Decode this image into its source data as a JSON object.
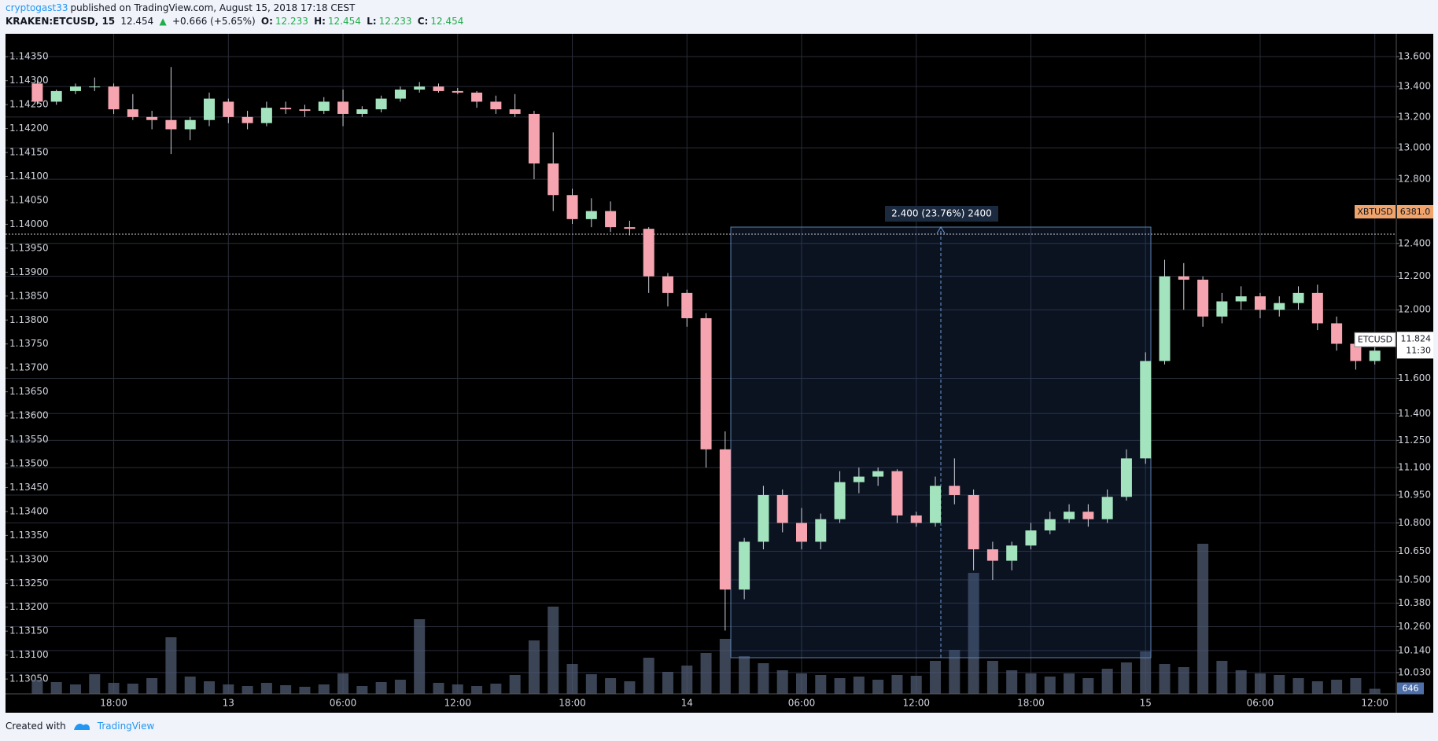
{
  "header": {
    "author": "cryptogast33",
    "published": "published on TradingView.com, August 15, 2018 17:18 CEST",
    "symbol": "KRAKEN:ETCUSD, 15",
    "last": "12.454",
    "arrow": "▲",
    "change": "+0.666 (+5.65%)",
    "o_label": "O:",
    "open": "12.233",
    "h_label": "H:",
    "high": "12.454",
    "l_label": "L:",
    "low": "12.233",
    "c_label": "C:",
    "close": "12.454"
  },
  "footer": {
    "text": "Created with",
    "brand": "TradingView"
  },
  "chart_data": {
    "type": "candlestick",
    "log_y": true,
    "grid": true,
    "up_color": "#a3e4be",
    "down_color": "#f6a5b0",
    "volume_color": "#4f5b72",
    "categories": [
      null,
      null,
      null,
      null,
      "18:00",
      null,
      null,
      null,
      null,
      null,
      "13",
      null,
      null,
      null,
      null,
      null,
      "06:00",
      null,
      null,
      null,
      null,
      null,
      "12:00",
      null,
      null,
      null,
      null,
      null,
      "18:00",
      null,
      null,
      null,
      null,
      null,
      "14",
      null,
      null,
      null,
      null,
      null,
      "06:00",
      null,
      null,
      null,
      null,
      null,
      "12:00",
      null,
      null,
      null,
      null,
      null,
      "18:00",
      null,
      null,
      null,
      null,
      null,
      "15",
      null,
      null,
      null,
      null,
      null,
      "06:00",
      null,
      null,
      null,
      null,
      null,
      "12:00"
    ],
    "open": [
      13.42,
      13.3,
      13.37,
      13.4,
      13.4,
      13.25,
      13.2,
      13.18,
      13.12,
      13.18,
      13.3,
      13.2,
      13.16,
      13.26,
      13.25,
      13.24,
      13.3,
      13.22,
      13.25,
      13.32,
      13.38,
      13.4,
      13.37,
      13.36,
      13.3,
      13.25,
      13.22,
      12.9,
      12.7,
      12.55,
      12.6,
      12.5,
      12.49,
      12.2,
      12.1,
      11.95,
      11.2,
      10.45,
      10.7,
      10.95,
      10.8,
      10.7,
      10.82,
      11.02,
      11.05,
      11.08,
      10.84,
      10.8,
      11.0,
      10.95,
      10.66,
      10.6,
      10.68,
      10.76,
      10.82,
      10.86,
      10.82,
      10.94,
      11.15,
      11.7,
      12.2,
      12.18,
      11.96,
      12.05,
      12.08,
      12.0,
      12.04,
      12.1,
      11.92,
      11.8,
      11.7
    ],
    "high": [
      13.44,
      13.38,
      13.42,
      13.46,
      13.42,
      13.35,
      13.24,
      13.53,
      13.2,
      13.36,
      13.32,
      13.24,
      13.3,
      13.3,
      13.28,
      13.33,
      13.38,
      13.27,
      13.34,
      13.4,
      13.43,
      13.42,
      13.39,
      13.37,
      13.34,
      13.35,
      13.24,
      13.1,
      12.74,
      12.68,
      12.66,
      12.54,
      12.5,
      12.22,
      12.12,
      11.98,
      11.3,
      10.72,
      11.0,
      10.98,
      10.88,
      10.85,
      11.08,
      11.1,
      11.1,
      11.09,
      10.86,
      11.05,
      11.15,
      10.98,
      10.7,
      10.7,
      10.8,
      10.86,
      10.9,
      10.9,
      10.98,
      11.2,
      11.75,
      12.3,
      12.28,
      12.2,
      12.1,
      12.14,
      12.1,
      12.08,
      12.14,
      12.15,
      11.96,
      11.84,
      11.78
    ],
    "low": [
      13.28,
      13.28,
      13.35,
      13.37,
      13.22,
      13.18,
      13.12,
      12.96,
      13.05,
      13.14,
      13.16,
      13.12,
      13.14,
      13.22,
      13.2,
      13.22,
      13.14,
      13.2,
      13.23,
      13.3,
      13.36,
      13.36,
      13.35,
      13.26,
      13.22,
      13.2,
      12.8,
      12.6,
      12.52,
      12.5,
      12.47,
      12.45,
      12.1,
      12.02,
      11.9,
      11.1,
      10.24,
      10.4,
      10.66,
      10.75,
      10.66,
      10.66,
      10.8,
      10.96,
      11.0,
      10.8,
      10.78,
      10.78,
      10.9,
      10.55,
      10.5,
      10.55,
      10.66,
      10.74,
      10.8,
      10.78,
      10.8,
      10.92,
      11.12,
      11.68,
      12.0,
      11.9,
      11.92,
      12.0,
      11.95,
      11.96,
      12.0,
      11.88,
      11.76,
      11.65,
      11.68
    ],
    "close": [
      13.3,
      13.37,
      13.4,
      13.4,
      13.25,
      13.2,
      13.18,
      13.12,
      13.18,
      13.32,
      13.2,
      13.16,
      13.26,
      13.25,
      13.24,
      13.3,
      13.22,
      13.25,
      13.32,
      13.38,
      13.4,
      13.37,
      13.36,
      13.3,
      13.25,
      13.22,
      12.9,
      12.7,
      12.55,
      12.6,
      12.5,
      12.49,
      12.2,
      12.1,
      11.95,
      11.2,
      10.45,
      10.7,
      10.95,
      10.8,
      10.7,
      10.82,
      11.02,
      11.05,
      11.08,
      10.84,
      10.8,
      11.0,
      10.95,
      10.66,
      10.6,
      10.68,
      10.76,
      10.82,
      10.86,
      10.82,
      10.94,
      11.15,
      11.7,
      12.2,
      12.18,
      11.96,
      12.05,
      12.08,
      12.0,
      12.04,
      12.1,
      11.92,
      11.8,
      11.7,
      11.76
    ],
    "volume": [
      1800,
      1500,
      1200,
      2500,
      1400,
      1300,
      2000,
      7200,
      2200,
      1600,
      1200,
      1000,
      1400,
      1100,
      900,
      1200,
      2600,
      1000,
      1500,
      1800,
      9500,
      1400,
      1200,
      1000,
      1300,
      2400,
      6800,
      11100,
      3800,
      2500,
      2000,
      1600,
      4600,
      2800,
      3600,
      5200,
      7000,
      4800,
      3900,
      3000,
      2600,
      2400,
      2000,
      2200,
      1800,
      2400,
      2300,
      4200,
      5600,
      15400,
      4200,
      3000,
      2600,
      2200,
      2600,
      2000,
      3200,
      4000,
      5400,
      3800,
      3400,
      19100,
      4200,
      3000,
      2600,
      2400,
      2000,
      1600,
      1800,
      2000,
      646
    ],
    "vlim": [
      0,
      20000
    ],
    "ylim": [
      9.925,
      13.754
    ],
    "yticks": [
      {
        "value": 13.6,
        "label": "13.600"
      },
      {
        "value": 13.4,
        "label": "13.400"
      },
      {
        "value": 13.2,
        "label": "13.200"
      },
      {
        "value": 13.0,
        "label": "13.000"
      },
      {
        "value": 12.8,
        "label": "12.800"
      },
      {
        "value": 12.4,
        "label": "12.400"
      },
      {
        "value": 12.2,
        "label": "12.200"
      },
      {
        "value": 12.0,
        "label": "12.000"
      },
      {
        "value": 11.6,
        "label": "11.600"
      },
      {
        "value": 11.4,
        "label": "11.400"
      },
      {
        "value": 11.25,
        "label": "11.250"
      },
      {
        "value": 11.1,
        "label": "11.100"
      },
      {
        "value": 10.95,
        "label": "10.950"
      },
      {
        "value": 10.8,
        "label": "10.800"
      },
      {
        "value": 10.65,
        "label": "10.650"
      },
      {
        "value": 10.5,
        "label": "10.500"
      },
      {
        "value": 10.38,
        "label": "10.380"
      },
      {
        "value": 10.26,
        "label": "10.260"
      },
      {
        "value": 10.14,
        "label": "10.140"
      },
      {
        "value": 10.03,
        "label": "10.030"
      }
    ],
    "y2lim": [
      1.13019,
      1.14398
    ],
    "y2ticks": [
      {
        "value": 1.1435,
        "label": "1.14350"
      },
      {
        "value": 1.143,
        "label": "1.14300"
      },
      {
        "value": 1.1425,
        "label": "1.14250"
      },
      {
        "value": 1.142,
        "label": "1.14200"
      },
      {
        "value": 1.1415,
        "label": "1.14150"
      },
      {
        "value": 1.141,
        "label": "1.14100"
      },
      {
        "value": 1.1405,
        "label": "1.14050"
      },
      {
        "value": 1.14,
        "label": "1.14000"
      },
      {
        "value": 1.1395,
        "label": "1.13950"
      },
      {
        "value": 1.139,
        "label": "1.13900"
      },
      {
        "value": 1.1385,
        "label": "1.13850"
      },
      {
        "value": 1.138,
        "label": "1.13800"
      },
      {
        "value": 1.1375,
        "label": "1.13750"
      },
      {
        "value": 1.137,
        "label": "1.13700"
      },
      {
        "value": 1.1365,
        "label": "1.13650"
      },
      {
        "value": 1.136,
        "label": "1.13600"
      },
      {
        "value": 1.1355,
        "label": "1.13550"
      },
      {
        "value": 1.135,
        "label": "1.13500"
      },
      {
        "value": 1.1345,
        "label": "1.13450"
      },
      {
        "value": 1.134,
        "label": "1.13400"
      },
      {
        "value": 1.1335,
        "label": "1.13350"
      },
      {
        "value": 1.133,
        "label": "1.13300"
      },
      {
        "value": 1.1325,
        "label": "1.13250"
      },
      {
        "value": 1.132,
        "label": "1.13200"
      },
      {
        "value": 1.1315,
        "label": "1.13150"
      },
      {
        "value": 1.131,
        "label": "1.13100"
      },
      {
        "value": 1.1305,
        "label": "1.13050"
      }
    ],
    "measure": "2.400 (23.76%) 2400",
    "xbt_label": {
      "name": "XBTUSD",
      "value": {
        "value": 6381,
        "label": "6381.0"
      }
    },
    "etc_label": {
      "name": "ETCUSD",
      "value": 11.824,
      "time": "11:30"
    },
    "volume_label": 646
  }
}
